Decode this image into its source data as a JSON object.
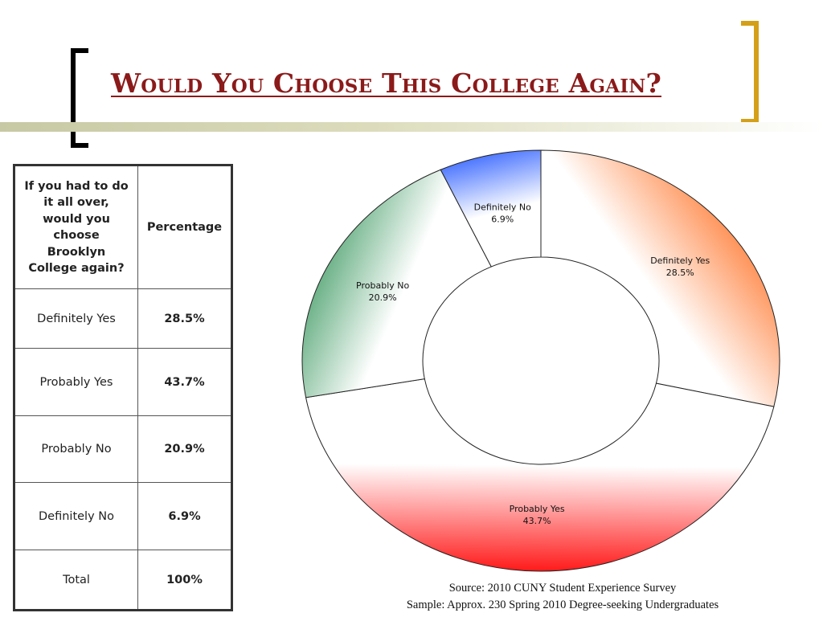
{
  "page": {
    "title": "Would You Choose This College Again?",
    "source": "Source: 2010 CUNY Student Experience Survey",
    "sample": "Sample: Approx. 230 Spring 2010 Degree-seeking Undergraduates"
  },
  "colors": {
    "title": "#8b1a1a",
    "left_bracket": "#000000",
    "right_bracket": "#d4a017"
  },
  "table": {
    "headers": [
      "If you had to do it all over, would you choose Brooklyn College again?",
      "Percentage"
    ],
    "rows": [
      {
        "label": "Definitely Yes",
        "value": "28.5%"
      },
      {
        "label": "Probably Yes",
        "value": "43.7%"
      },
      {
        "label": "Probably No",
        "value": "20.9%"
      },
      {
        "label": "Definitely No",
        "value": "6.9%"
      },
      {
        "label": "Total",
        "value": "100%"
      }
    ]
  },
  "chart_data": {
    "type": "pie",
    "donut": true,
    "title": "",
    "categories": [
      "Definitely Yes",
      "Probably Yes",
      "Probably No",
      "Definitely No"
    ],
    "values": [
      28.5,
      43.7,
      20.9,
      6.9
    ],
    "value_labels": [
      "28.5%",
      "43.7%",
      "20.9%",
      "6.9%"
    ],
    "colors": [
      "#ff6a1a",
      "#ff1a1a",
      "#3f9a63",
      "#3f6cff"
    ],
    "start": "12 o'clock",
    "direction": "clockwise",
    "legend": "none",
    "data_labels": "category and percentage on slices"
  }
}
